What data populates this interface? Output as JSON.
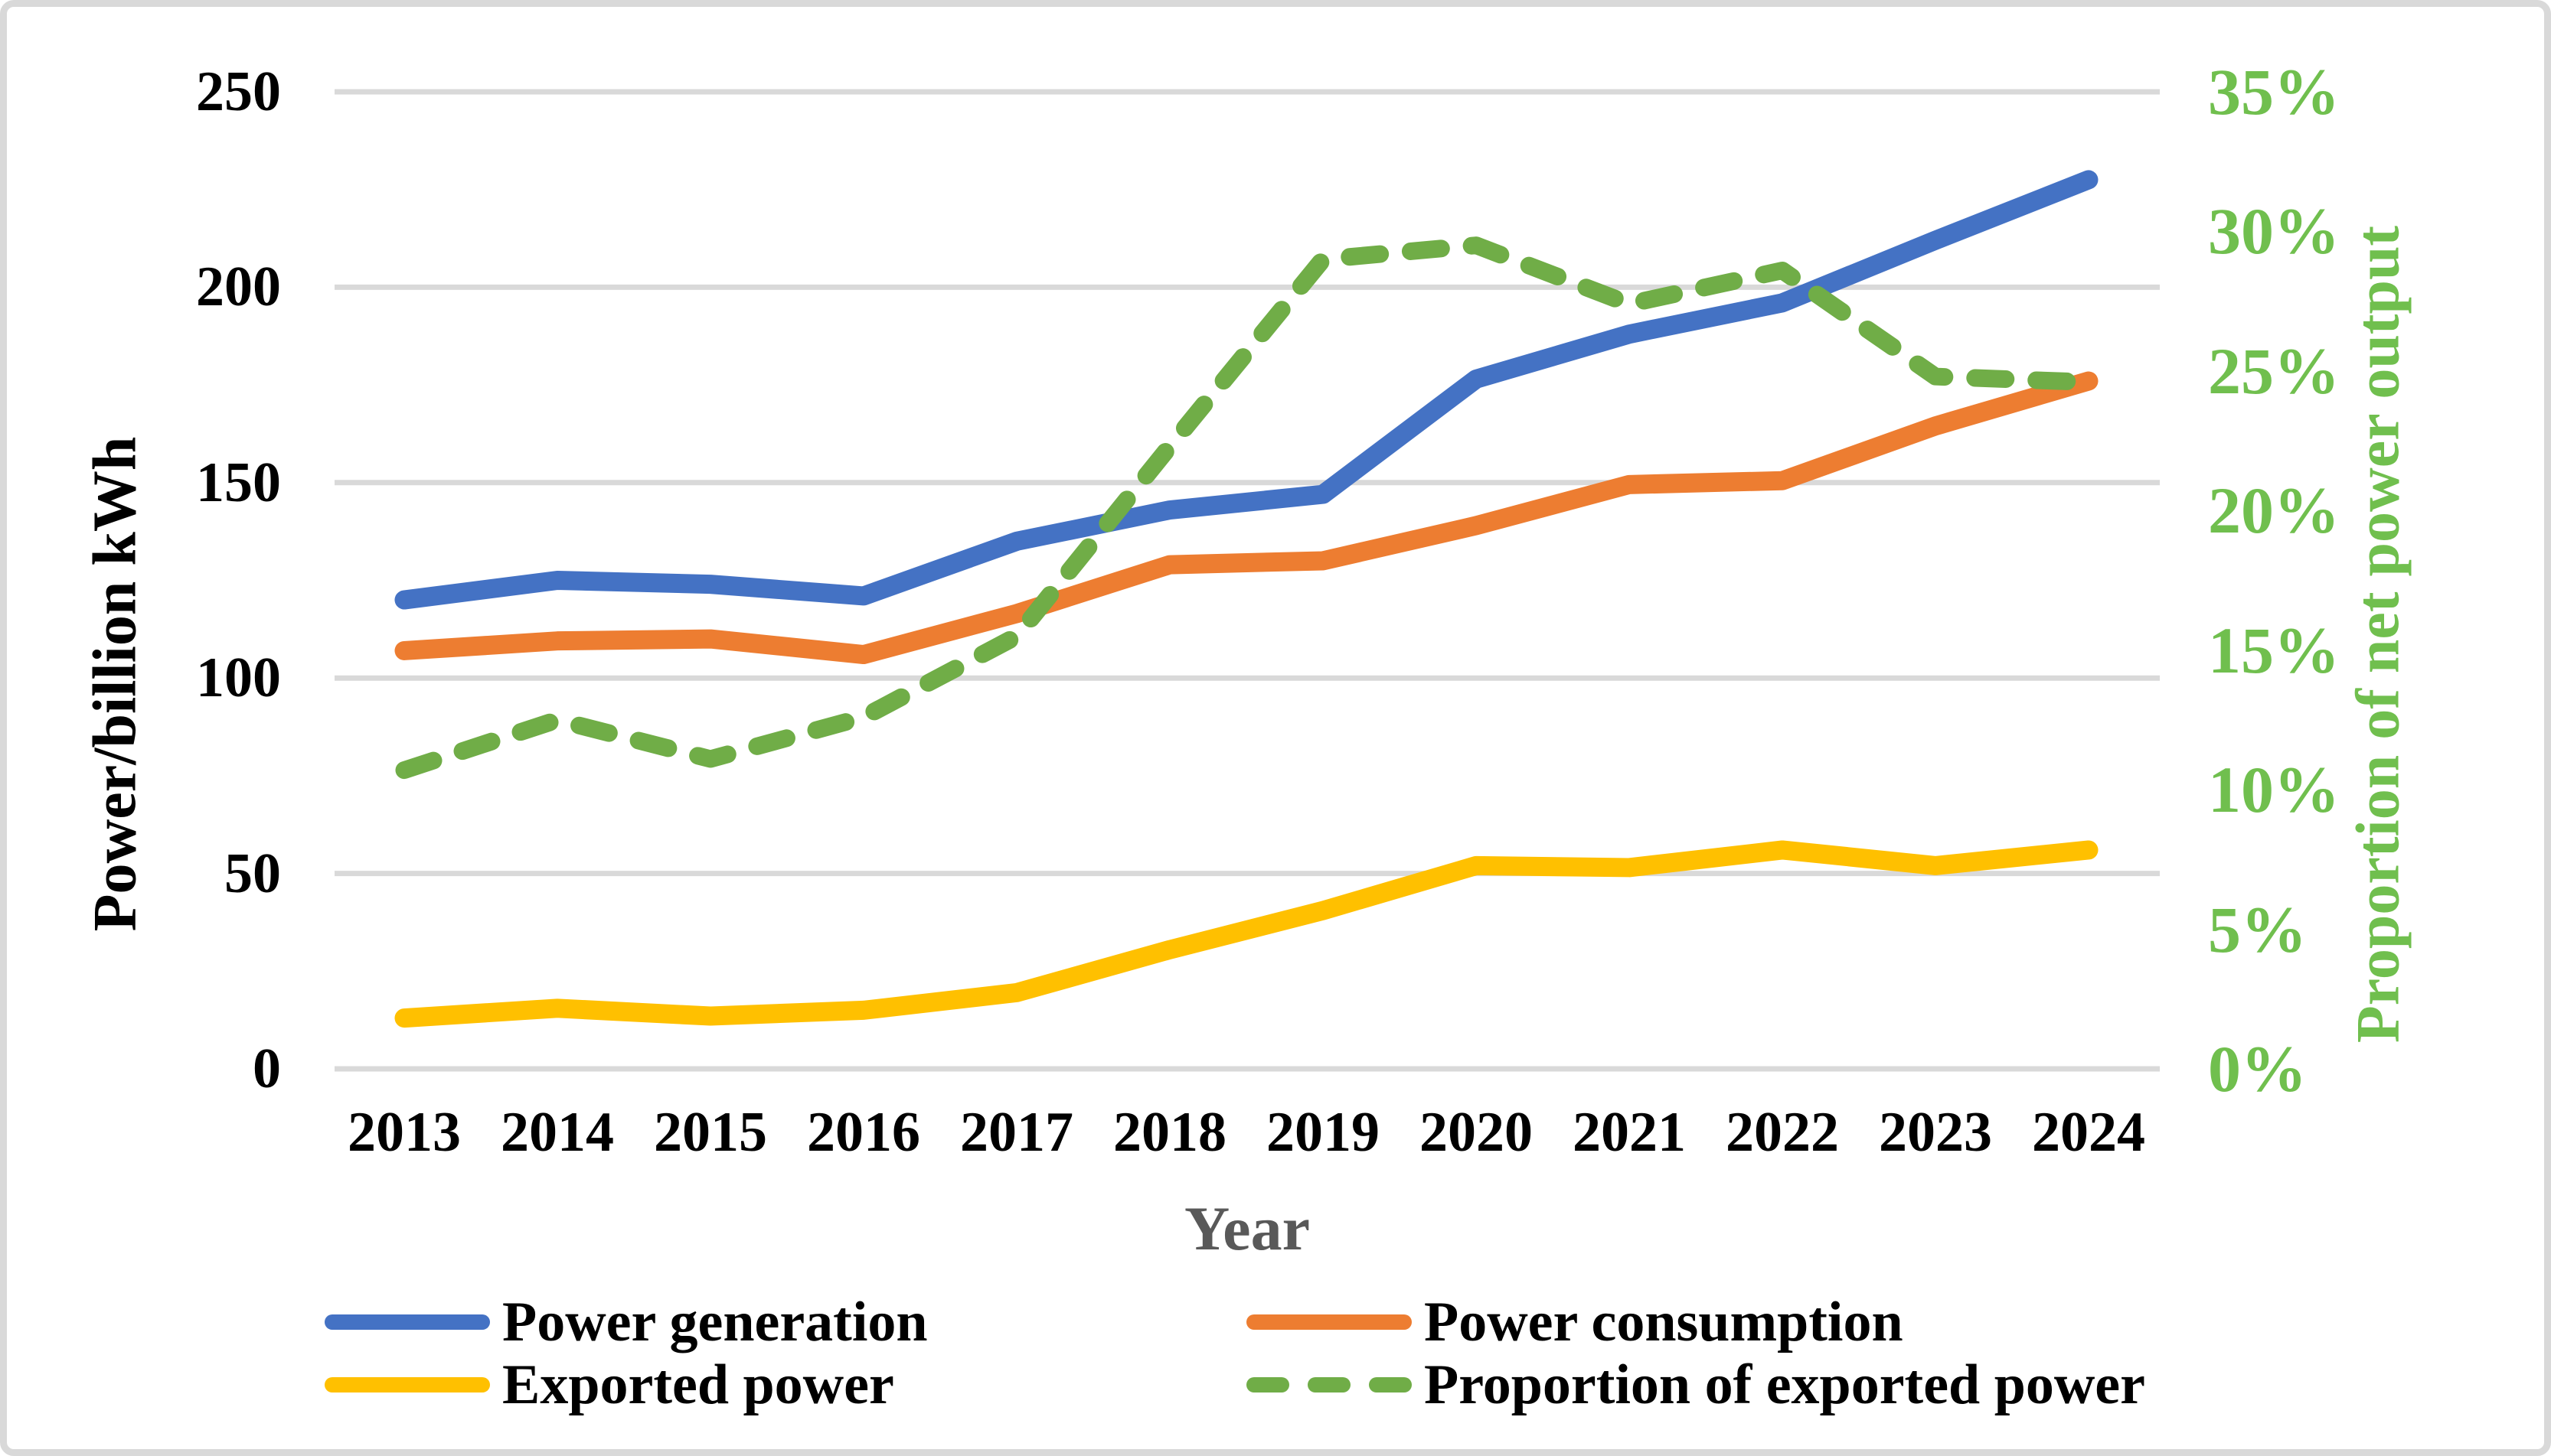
{
  "figure": {
    "background": "#FFFFFF",
    "frame_color": "#D9D9D9"
  },
  "chart_data": {
    "type": "line",
    "grid": {
      "show": true,
      "color": "#D9D9D9"
    },
    "x_axis": {
      "title": "Year",
      "title_color": "#595959",
      "categories": [
        "2013",
        "2014",
        "2015",
        "2016",
        "2017",
        "2018",
        "2019",
        "2020",
        "2021",
        "2022",
        "2023",
        "2024"
      ]
    },
    "y_axis_left": {
      "title": "Power/billion kWh",
      "text_color": "#000000",
      "range": [
        0,
        250
      ],
      "tick_step": 50,
      "tick_labels": [
        "250",
        "200",
        "150",
        "100",
        "50",
        "0"
      ]
    },
    "y_axis_right": {
      "title": "Proportion of net power output",
      "text_color": "#70BF4E",
      "range": [
        0,
        35
      ],
      "unit": "%",
      "tick_labels": [
        "35%",
        "30%",
        "25%",
        "20%",
        "15%",
        "10%",
        "5%",
        "0%"
      ]
    },
    "series": [
      {
        "name": "Power generation",
        "axis": "left",
        "style": "solid",
        "color": "#4472C4",
        "values": [
          120,
          125,
          124,
          121,
          135,
          143,
          147,
          176.5,
          188,
          196,
          212,
          227.5
        ]
      },
      {
        "name": "Power consumption",
        "axis": "left",
        "style": "solid",
        "color": "#ED7D31",
        "values": [
          107,
          109.5,
          110,
          106,
          116.5,
          129,
          130,
          139,
          149.5,
          150.5,
          164.5,
          176
        ]
      },
      {
        "name": "Exported power",
        "axis": "left",
        "style": "solid",
        "color": "#FFC000",
        "values": [
          13,
          15.5,
          13.5,
          15,
          19.5,
          30.5,
          40.5,
          52,
          51.5,
          56,
          52,
          56
        ]
      },
      {
        "name": "Proportion of exported power",
        "axis": "right",
        "style": "dashed",
        "color": "#70AD47",
        "values": [
          10.7,
          12.5,
          11.1,
          12.6,
          15.5,
          22.3,
          29.0,
          29.5,
          27.4,
          28.6,
          24.8,
          24.6
        ]
      }
    ],
    "legend_position": "bottom"
  },
  "legend": {
    "row1_col1": "Power generation",
    "row1_col2": "Power consumption",
    "row2_col1": "Exported power",
    "row2_col2": "Proportion of exported power"
  }
}
